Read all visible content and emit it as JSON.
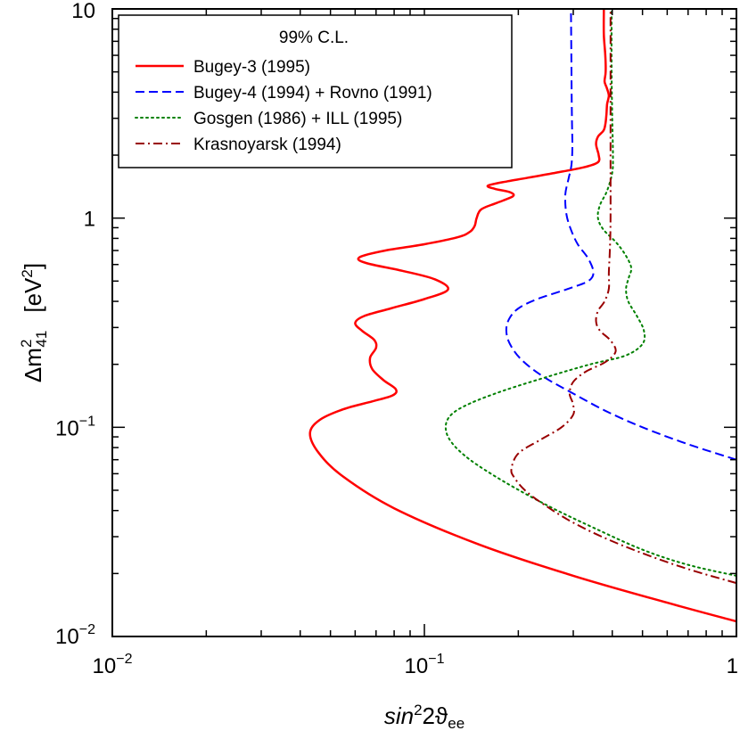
{
  "chart_data": {
    "type": "line",
    "title": "",
    "xlabel": {
      "base": "sin",
      "sup": "2",
      "rest": "2ϑ",
      "sub": "ee"
    },
    "ylabel": {
      "prefix": "Δm",
      "sup": "2",
      "sub": "41",
      "unit_pre": "[eV",
      "unit_sup": "2",
      "unit_post": "]"
    },
    "xscale": "log",
    "yscale": "log",
    "xlim": [
      0.01,
      1
    ],
    "ylim": [
      0.01,
      10
    ],
    "grid": false,
    "x_ticks": [
      {
        "value": 0.01,
        "base": "10",
        "exp": "−2"
      },
      {
        "value": 0.1,
        "base": "10",
        "exp": "−1"
      },
      {
        "value": 1,
        "base": "1",
        "exp": ""
      }
    ],
    "y_ticks": [
      {
        "value": 0.01,
        "base": "10",
        "exp": "−2"
      },
      {
        "value": 0.1,
        "base": "10",
        "exp": "−1"
      },
      {
        "value": 1,
        "base": "1",
        "exp": ""
      },
      {
        "value": 10,
        "base": "10",
        "exp": ""
      }
    ],
    "legend": {
      "title": "99% C.L.",
      "placement": "top-left",
      "entries": [
        "Bugey-3 (1995)",
        "Bugey-4 (1994) + Rovno (1991)",
        "Gosgen (1986) + ILL (1995)",
        "Krasnoyarsk (1994)"
      ]
    },
    "series": [
      {
        "name": "Bugey-3 (1995)",
        "color": "#ff0000",
        "style": "solid",
        "points": [
          [
            1.0,
            0.0118
          ],
          [
            0.6,
            0.0145
          ],
          [
            0.3,
            0.0195
          ],
          [
            0.15,
            0.0275
          ],
          [
            0.08,
            0.041
          ],
          [
            0.055,
            0.058
          ],
          [
            0.046,
            0.075
          ],
          [
            0.043,
            0.093
          ],
          [
            0.046,
            0.108
          ],
          [
            0.055,
            0.122
          ],
          [
            0.068,
            0.133
          ],
          [
            0.079,
            0.142
          ],
          [
            0.081,
            0.152
          ],
          [
            0.074,
            0.168
          ],
          [
            0.068,
            0.19
          ],
          [
            0.067,
            0.215
          ],
          [
            0.07,
            0.24
          ],
          [
            0.069,
            0.262
          ],
          [
            0.063,
            0.29
          ],
          [
            0.06,
            0.315
          ],
          [
            0.064,
            0.34
          ],
          [
            0.078,
            0.37
          ],
          [
            0.1,
            0.41
          ],
          [
            0.119,
            0.455
          ],
          [
            0.108,
            0.51
          ],
          [
            0.085,
            0.56
          ],
          [
            0.065,
            0.61
          ],
          [
            0.062,
            0.65
          ],
          [
            0.075,
            0.7
          ],
          [
            0.1,
            0.75
          ],
          [
            0.128,
            0.81
          ],
          [
            0.14,
            0.86
          ],
          [
            0.145,
            0.92
          ],
          [
            0.147,
            1.0
          ],
          [
            0.152,
            1.1
          ],
          [
            0.17,
            1.18
          ],
          [
            0.192,
            1.27
          ],
          [
            0.188,
            1.33
          ],
          [
            0.168,
            1.38
          ],
          [
            0.16,
            1.43
          ],
          [
            0.185,
            1.5
          ],
          [
            0.215,
            1.56
          ],
          [
            0.265,
            1.65
          ],
          [
            0.325,
            1.75
          ],
          [
            0.36,
            1.85
          ],
          [
            0.362,
            2.0
          ],
          [
            0.355,
            2.25
          ],
          [
            0.36,
            2.45
          ],
          [
            0.375,
            2.62
          ],
          [
            0.38,
            2.8
          ],
          [
            0.383,
            3.1
          ],
          [
            0.385,
            3.5
          ],
          [
            0.39,
            3.85
          ],
          [
            0.384,
            4.2
          ],
          [
            0.378,
            4.5
          ],
          [
            0.381,
            5.0
          ],
          [
            0.38,
            6.0
          ],
          [
            0.376,
            7.5
          ],
          [
            0.376,
            10.0
          ]
        ]
      },
      {
        "name": "Bugey-4 (1994) + Rovno (1991)",
        "color": "#0000ff",
        "style": "dashed",
        "points": [
          [
            1.0,
            0.07
          ],
          [
            0.7,
            0.083
          ],
          [
            0.5,
            0.1
          ],
          [
            0.38,
            0.12
          ],
          [
            0.3,
            0.145
          ],
          [
            0.24,
            0.175
          ],
          [
            0.205,
            0.21
          ],
          [
            0.188,
            0.25
          ],
          [
            0.183,
            0.29
          ],
          [
            0.187,
            0.33
          ],
          [
            0.2,
            0.37
          ],
          [
            0.23,
            0.41
          ],
          [
            0.29,
            0.46
          ],
          [
            0.335,
            0.5
          ],
          [
            0.348,
            0.55
          ],
          [
            0.335,
            0.64
          ],
          [
            0.31,
            0.75
          ],
          [
            0.295,
            0.88
          ],
          [
            0.285,
            1.05
          ],
          [
            0.283,
            1.3
          ],
          [
            0.29,
            1.55
          ],
          [
            0.296,
            1.8
          ],
          [
            0.298,
            2.2
          ],
          [
            0.297,
            3.0
          ],
          [
            0.296,
            5.0
          ],
          [
            0.295,
            10.0
          ]
        ]
      },
      {
        "name": "Gosgen (1986) + ILL (1995)",
        "color": "#008000",
        "style": "dotted",
        "points": [
          [
            1.0,
            0.0195
          ],
          [
            0.7,
            0.022
          ],
          [
            0.5,
            0.026
          ],
          [
            0.35,
            0.033
          ],
          [
            0.25,
            0.042
          ],
          [
            0.18,
            0.055
          ],
          [
            0.14,
            0.07
          ],
          [
            0.122,
            0.085
          ],
          [
            0.117,
            0.1
          ],
          [
            0.122,
            0.115
          ],
          [
            0.14,
            0.13
          ],
          [
            0.18,
            0.15
          ],
          [
            0.25,
            0.175
          ],
          [
            0.34,
            0.2
          ],
          [
            0.44,
            0.22
          ],
          [
            0.5,
            0.25
          ],
          [
            0.505,
            0.29
          ],
          [
            0.48,
            0.34
          ],
          [
            0.45,
            0.4
          ],
          [
            0.443,
            0.46
          ],
          [
            0.452,
            0.52
          ],
          [
            0.46,
            0.58
          ],
          [
            0.44,
            0.67
          ],
          [
            0.41,
            0.77
          ],
          [
            0.375,
            0.88
          ],
          [
            0.36,
            1.0
          ],
          [
            0.365,
            1.15
          ],
          [
            0.385,
            1.35
          ],
          [
            0.4,
            1.65
          ],
          [
            0.402,
            2.0
          ],
          [
            0.4,
            3.0
          ],
          [
            0.398,
            5.0
          ],
          [
            0.398,
            10.0
          ]
        ]
      },
      {
        "name": "Krasnoyarsk (1994)",
        "color": "#990000",
        "style": "dashdot",
        "points": [
          [
            1.0,
            0.018
          ],
          [
            0.7,
            0.021
          ],
          [
            0.5,
            0.025
          ],
          [
            0.37,
            0.03
          ],
          [
            0.29,
            0.036
          ],
          [
            0.24,
            0.043
          ],
          [
            0.21,
            0.05
          ],
          [
            0.195,
            0.057
          ],
          [
            0.19,
            0.063
          ],
          [
            0.2,
            0.075
          ],
          [
            0.235,
            0.087
          ],
          [
            0.275,
            0.1
          ],
          [
            0.3,
            0.115
          ],
          [
            0.299,
            0.13
          ],
          [
            0.292,
            0.145
          ],
          [
            0.3,
            0.165
          ],
          [
            0.33,
            0.185
          ],
          [
            0.38,
            0.205
          ],
          [
            0.41,
            0.23
          ],
          [
            0.395,
            0.26
          ],
          [
            0.365,
            0.29
          ],
          [
            0.355,
            0.32
          ],
          [
            0.36,
            0.36
          ],
          [
            0.378,
            0.4
          ],
          [
            0.39,
            0.46
          ],
          [
            0.39,
            0.55
          ],
          [
            0.393,
            0.7
          ],
          [
            0.395,
            1.0
          ],
          [
            0.395,
            2.0
          ],
          [
            0.395,
            5.0
          ],
          [
            0.395,
            10.0
          ]
        ]
      }
    ]
  }
}
